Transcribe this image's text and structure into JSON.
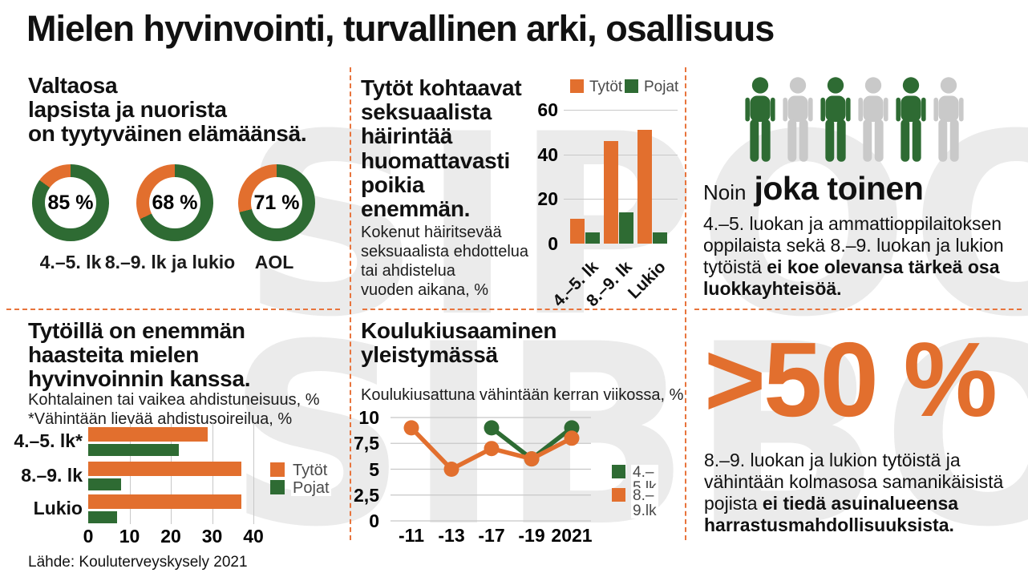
{
  "title": "Mielen hyvinvointi, turvallinen arki, osallisuus",
  "source": "Lähde: Kouluterveyskysely 2021",
  "watermark": {
    "line1": "SIPOO",
    "line2": "SIBBO"
  },
  "colors": {
    "orange": "#e26f2e",
    "green": "#2e6b33",
    "person_gray": "#c9c9c9",
    "grid": "#c8c8c8",
    "divider": "#e8743c",
    "watermark": "#ebebeb",
    "legend_text": "#4a4a4a"
  },
  "sections": {
    "life_satisfaction": {
      "heading": "Valtaosa\nlapsista ja nuorista\non tyytyväinen elämäänsä."
    },
    "harassment": {
      "heading": "Tytöt kohtaavat\nseksuaalista\nhäirintää\nhuomattavasti\npoikia\nenemmän.",
      "subtext": "Kokenut häiritsevää\nseksuaalista ehdottelua\ntai ahdistelua\nvuoden aikana, %"
    },
    "community": {
      "prefix": "Noin",
      "highlight": "joka toinen",
      "text_regular": "4.–5. luokan ja ammattioppilaitoksen oppilaista sekä 8.–9. luokan ja lukion tytöistä ",
      "text_bold": "ei koe olevansa tärkeä osa luokkayhteisöä.",
      "people": [
        "green",
        "person_gray",
        "green",
        "person_gray",
        "green",
        "person_gray"
      ]
    },
    "anxiety": {
      "heading": "Tytöillä on enemmän\nhaasteita mielen\nhyvinvoinnin kanssa.",
      "subtext": "Kohtalainen tai vaikea ahdistuneisuus, %\n*Vähintään lievää ahdistusoireilua, %"
    },
    "bullying": {
      "heading": "Koulukiusaaminen\nyleistymässä",
      "subtext": "Koulukiusattuna vähintään kerran viikossa, %"
    },
    "hobbies": {
      "big_number": ">50 %",
      "text_regular": "8.–9. luokan ja lukion tytöistä ja vähintään kolmasosa samanikäisistä pojista ",
      "text_bold": "ei tiedä asuinalueensa harrastusmahdollisuuksista."
    }
  },
  "chart_data": [
    {
      "id": "life_satisfaction_donuts",
      "type": "pie",
      "title": "Valtaosa lapsista ja nuorista on tyytyväinen elämäänsä.",
      "unit": "%",
      "donuts": [
        {
          "label": "4.–5. lk",
          "value": 85,
          "value_display": "85 %"
        },
        {
          "label": "8.–9. lk ja lukio",
          "value": 68,
          "value_display": "68 %"
        },
        {
          "label": "AOL",
          "value": 71,
          "value_display": "71 %"
        }
      ],
      "slice_colors": {
        "satisfied": "green",
        "remainder": "orange"
      }
    },
    {
      "id": "sexual_harassment",
      "type": "bar",
      "title": "Tytöt kohtaavat seksuaalista häirintää huomattavasti poikia enemmän.",
      "subtitle": "Kokenut häiritsevää seksuaalista ehdottelua tai ahdistelua vuoden aikana, %",
      "categories": [
        "4.–5. lk",
        "8.–9. lk",
        "Lukio"
      ],
      "series": [
        {
          "name": "Tytöt",
          "color": "orange",
          "values": [
            11,
            46,
            51
          ]
        },
        {
          "name": "Pojat",
          "color": "green",
          "values": [
            5,
            14,
            5
          ]
        }
      ],
      "ylim": [
        0,
        60
      ],
      "yticks": [
        60,
        40,
        20,
        0
      ],
      "grid_values": [
        60,
        40,
        20
      ],
      "legend_position": "top"
    },
    {
      "id": "anxiety",
      "type": "bar-horizontal",
      "title": "Tytöillä on enemmän haasteita mielen hyvinvoinnin kanssa.",
      "subtitle": "Kohtalainen tai vaikea ahdistuneisuus, % / *Vähintään lievää ahdistusoireilua, %",
      "categories": [
        "4.–5. lk*",
        "8.–9. lk",
        "Lukio"
      ],
      "series": [
        {
          "name": "Tytöt",
          "color": "orange",
          "values": [
            29,
            37,
            37
          ]
        },
        {
          "name": "Pojat",
          "color": "green",
          "values": [
            22,
            8,
            7
          ]
        }
      ],
      "xlim": [
        0,
        40
      ],
      "xticks": [
        0,
        10,
        20,
        30,
        40
      ],
      "grid_values": [
        10,
        20,
        30,
        40
      ],
      "legend_position": "right"
    },
    {
      "id": "bullying",
      "type": "line",
      "title": "Koulukiusaaminen yleistymässä",
      "subtitle": "Koulukiusattuna vähintään kerran viikossa, %",
      "x": [
        "-11",
        "-13",
        "-17",
        "-19",
        "2021"
      ],
      "series": [
        {
          "name": "4.–5.lk",
          "color": "green",
          "values": [
            null,
            null,
            9,
            6,
            9
          ]
        },
        {
          "name": "8.–9.lk",
          "color": "orange",
          "values": [
            9,
            5,
            7,
            6,
            8
          ]
        }
      ],
      "ylim": [
        0,
        10
      ],
      "yticks": [
        10,
        7.5,
        5,
        2.5,
        0
      ],
      "ytick_labels": [
        "10",
        "7,5",
        "5",
        "2,5",
        "0"
      ],
      "grid": true,
      "legend_position": "right"
    }
  ]
}
